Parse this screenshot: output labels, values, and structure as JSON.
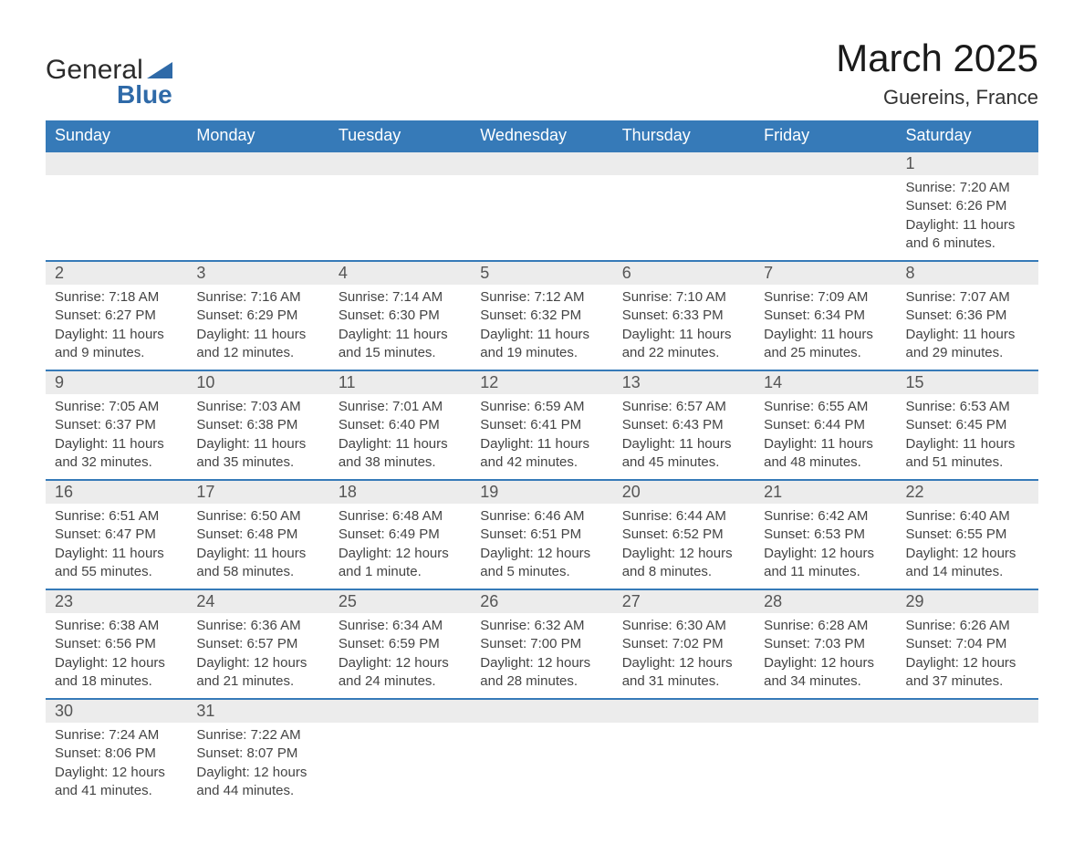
{
  "logo": {
    "word1": "General",
    "word2": "Blue",
    "accent_color": "#2f6aa8"
  },
  "title": "March 2025",
  "subtitle": "Guereins, France",
  "colors": {
    "header_bg": "#367ab8",
    "header_text": "#ffffff",
    "daynum_bg": "#ececec",
    "row_divider": "#367ab8",
    "body_text": "#444444"
  },
  "fonts": {
    "title_size_pt": 42,
    "subtitle_size_pt": 22,
    "header_size_pt": 18,
    "daynum_size_pt": 18,
    "body_size_pt": 15
  },
  "weekdays": [
    "Sunday",
    "Monday",
    "Tuesday",
    "Wednesday",
    "Thursday",
    "Friday",
    "Saturday"
  ],
  "weeks": [
    [
      null,
      null,
      null,
      null,
      null,
      null,
      {
        "n": "1",
        "sunrise": "Sunrise: 7:20 AM",
        "sunset": "Sunset: 6:26 PM",
        "dl1": "Daylight: 11 hours",
        "dl2": "and 6 minutes."
      }
    ],
    [
      {
        "n": "2",
        "sunrise": "Sunrise: 7:18 AM",
        "sunset": "Sunset: 6:27 PM",
        "dl1": "Daylight: 11 hours",
        "dl2": "and 9 minutes."
      },
      {
        "n": "3",
        "sunrise": "Sunrise: 7:16 AM",
        "sunset": "Sunset: 6:29 PM",
        "dl1": "Daylight: 11 hours",
        "dl2": "and 12 minutes."
      },
      {
        "n": "4",
        "sunrise": "Sunrise: 7:14 AM",
        "sunset": "Sunset: 6:30 PM",
        "dl1": "Daylight: 11 hours",
        "dl2": "and 15 minutes."
      },
      {
        "n": "5",
        "sunrise": "Sunrise: 7:12 AM",
        "sunset": "Sunset: 6:32 PM",
        "dl1": "Daylight: 11 hours",
        "dl2": "and 19 minutes."
      },
      {
        "n": "6",
        "sunrise": "Sunrise: 7:10 AM",
        "sunset": "Sunset: 6:33 PM",
        "dl1": "Daylight: 11 hours",
        "dl2": "and 22 minutes."
      },
      {
        "n": "7",
        "sunrise": "Sunrise: 7:09 AM",
        "sunset": "Sunset: 6:34 PM",
        "dl1": "Daylight: 11 hours",
        "dl2": "and 25 minutes."
      },
      {
        "n": "8",
        "sunrise": "Sunrise: 7:07 AM",
        "sunset": "Sunset: 6:36 PM",
        "dl1": "Daylight: 11 hours",
        "dl2": "and 29 minutes."
      }
    ],
    [
      {
        "n": "9",
        "sunrise": "Sunrise: 7:05 AM",
        "sunset": "Sunset: 6:37 PM",
        "dl1": "Daylight: 11 hours",
        "dl2": "and 32 minutes."
      },
      {
        "n": "10",
        "sunrise": "Sunrise: 7:03 AM",
        "sunset": "Sunset: 6:38 PM",
        "dl1": "Daylight: 11 hours",
        "dl2": "and 35 minutes."
      },
      {
        "n": "11",
        "sunrise": "Sunrise: 7:01 AM",
        "sunset": "Sunset: 6:40 PM",
        "dl1": "Daylight: 11 hours",
        "dl2": "and 38 minutes."
      },
      {
        "n": "12",
        "sunrise": "Sunrise: 6:59 AM",
        "sunset": "Sunset: 6:41 PM",
        "dl1": "Daylight: 11 hours",
        "dl2": "and 42 minutes."
      },
      {
        "n": "13",
        "sunrise": "Sunrise: 6:57 AM",
        "sunset": "Sunset: 6:43 PM",
        "dl1": "Daylight: 11 hours",
        "dl2": "and 45 minutes."
      },
      {
        "n": "14",
        "sunrise": "Sunrise: 6:55 AM",
        "sunset": "Sunset: 6:44 PM",
        "dl1": "Daylight: 11 hours",
        "dl2": "and 48 minutes."
      },
      {
        "n": "15",
        "sunrise": "Sunrise: 6:53 AM",
        "sunset": "Sunset: 6:45 PM",
        "dl1": "Daylight: 11 hours",
        "dl2": "and 51 minutes."
      }
    ],
    [
      {
        "n": "16",
        "sunrise": "Sunrise: 6:51 AM",
        "sunset": "Sunset: 6:47 PM",
        "dl1": "Daylight: 11 hours",
        "dl2": "and 55 minutes."
      },
      {
        "n": "17",
        "sunrise": "Sunrise: 6:50 AM",
        "sunset": "Sunset: 6:48 PM",
        "dl1": "Daylight: 11 hours",
        "dl2": "and 58 minutes."
      },
      {
        "n": "18",
        "sunrise": "Sunrise: 6:48 AM",
        "sunset": "Sunset: 6:49 PM",
        "dl1": "Daylight: 12 hours",
        "dl2": "and 1 minute."
      },
      {
        "n": "19",
        "sunrise": "Sunrise: 6:46 AM",
        "sunset": "Sunset: 6:51 PM",
        "dl1": "Daylight: 12 hours",
        "dl2": "and 5 minutes."
      },
      {
        "n": "20",
        "sunrise": "Sunrise: 6:44 AM",
        "sunset": "Sunset: 6:52 PM",
        "dl1": "Daylight: 12 hours",
        "dl2": "and 8 minutes."
      },
      {
        "n": "21",
        "sunrise": "Sunrise: 6:42 AM",
        "sunset": "Sunset: 6:53 PM",
        "dl1": "Daylight: 12 hours",
        "dl2": "and 11 minutes."
      },
      {
        "n": "22",
        "sunrise": "Sunrise: 6:40 AM",
        "sunset": "Sunset: 6:55 PM",
        "dl1": "Daylight: 12 hours",
        "dl2": "and 14 minutes."
      }
    ],
    [
      {
        "n": "23",
        "sunrise": "Sunrise: 6:38 AM",
        "sunset": "Sunset: 6:56 PM",
        "dl1": "Daylight: 12 hours",
        "dl2": "and 18 minutes."
      },
      {
        "n": "24",
        "sunrise": "Sunrise: 6:36 AM",
        "sunset": "Sunset: 6:57 PM",
        "dl1": "Daylight: 12 hours",
        "dl2": "and 21 minutes."
      },
      {
        "n": "25",
        "sunrise": "Sunrise: 6:34 AM",
        "sunset": "Sunset: 6:59 PM",
        "dl1": "Daylight: 12 hours",
        "dl2": "and 24 minutes."
      },
      {
        "n": "26",
        "sunrise": "Sunrise: 6:32 AM",
        "sunset": "Sunset: 7:00 PM",
        "dl1": "Daylight: 12 hours",
        "dl2": "and 28 minutes."
      },
      {
        "n": "27",
        "sunrise": "Sunrise: 6:30 AM",
        "sunset": "Sunset: 7:02 PM",
        "dl1": "Daylight: 12 hours",
        "dl2": "and 31 minutes."
      },
      {
        "n": "28",
        "sunrise": "Sunrise: 6:28 AM",
        "sunset": "Sunset: 7:03 PM",
        "dl1": "Daylight: 12 hours",
        "dl2": "and 34 minutes."
      },
      {
        "n": "29",
        "sunrise": "Sunrise: 6:26 AM",
        "sunset": "Sunset: 7:04 PM",
        "dl1": "Daylight: 12 hours",
        "dl2": "and 37 minutes."
      }
    ],
    [
      {
        "n": "30",
        "sunrise": "Sunrise: 7:24 AM",
        "sunset": "Sunset: 8:06 PM",
        "dl1": "Daylight: 12 hours",
        "dl2": "and 41 minutes."
      },
      {
        "n": "31",
        "sunrise": "Sunrise: 7:22 AM",
        "sunset": "Sunset: 8:07 PM",
        "dl1": "Daylight: 12 hours",
        "dl2": "and 44 minutes."
      },
      null,
      null,
      null,
      null,
      null
    ]
  ]
}
